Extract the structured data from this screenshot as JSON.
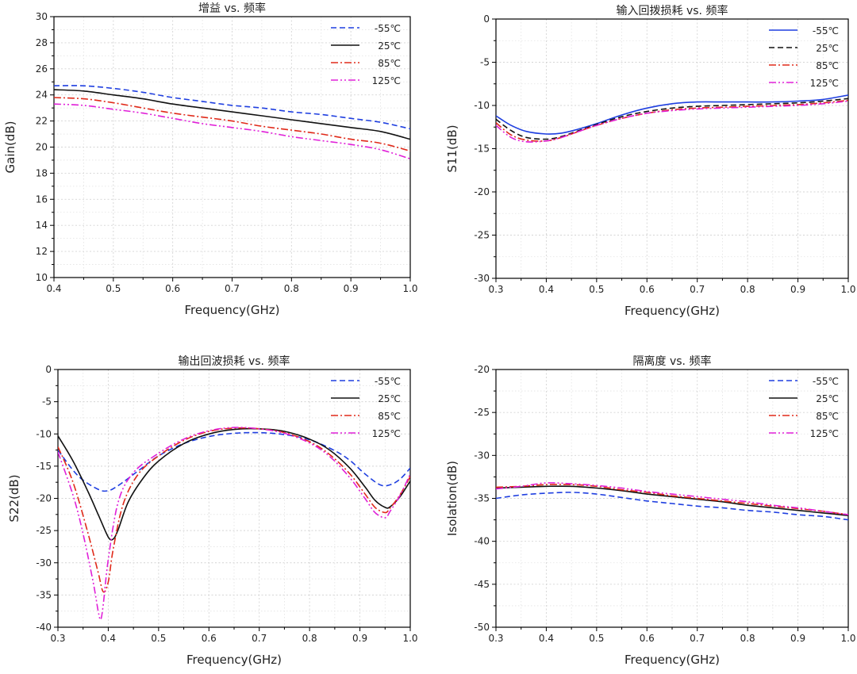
{
  "chart_data": [
    {
      "type": "line",
      "title": "增益 vs. 频率",
      "xlabel": "Frequency(GHz)",
      "ylabel": "Gain(dB)",
      "xlim": [
        0.4,
        1.0
      ],
      "ylim": [
        10,
        30
      ],
      "xticks": [
        0.4,
        0.5,
        0.6,
        0.7,
        0.8,
        0.9,
        1.0
      ],
      "xtick_labels": [
        "0.4",
        "0.5",
        "0.6",
        "0.7",
        "0.8",
        "0.9",
        "1.0"
      ],
      "yticks": [
        10,
        12,
        14,
        16,
        18,
        20,
        22,
        24,
        26,
        28,
        30
      ],
      "ytick_labels": [
        "10",
        "12",
        "14",
        "16",
        "18",
        "20",
        "22",
        "24",
        "26",
        "28",
        "30"
      ],
      "grid": true,
      "legend_position": "top-right",
      "series": [
        {
          "name": "-55℃",
          "color": "#1f3fe0",
          "dash": "dash",
          "x": [
            0.4,
            0.45,
            0.5,
            0.55,
            0.6,
            0.65,
            0.7,
            0.75,
            0.8,
            0.85,
            0.9,
            0.95,
            1.0
          ],
          "y": [
            24.7,
            24.7,
            24.5,
            24.2,
            23.8,
            23.5,
            23.2,
            23.0,
            22.7,
            22.5,
            22.2,
            21.9,
            21.4
          ]
        },
        {
          "name": "25℃",
          "color": "#111111",
          "dash": "solid",
          "x": [
            0.4,
            0.45,
            0.5,
            0.55,
            0.6,
            0.65,
            0.7,
            0.75,
            0.8,
            0.85,
            0.9,
            0.95,
            1.0
          ],
          "y": [
            24.4,
            24.3,
            24.0,
            23.7,
            23.3,
            23.0,
            22.7,
            22.4,
            22.1,
            21.8,
            21.5,
            21.2,
            20.6
          ]
        },
        {
          "name": "85℃",
          "color": "#e02a1a",
          "dash": "dashdot",
          "x": [
            0.4,
            0.45,
            0.5,
            0.55,
            0.6,
            0.65,
            0.7,
            0.75,
            0.8,
            0.85,
            0.9,
            0.95,
            1.0
          ],
          "y": [
            23.8,
            23.7,
            23.4,
            23.0,
            22.6,
            22.3,
            22.0,
            21.6,
            21.3,
            21.0,
            20.6,
            20.3,
            19.7
          ]
        },
        {
          "name": "125℃",
          "color": "#e020d8",
          "dash": "dashdotdot",
          "x": [
            0.4,
            0.45,
            0.5,
            0.55,
            0.6,
            0.65,
            0.7,
            0.75,
            0.8,
            0.85,
            0.9,
            0.95,
            1.0
          ],
          "y": [
            23.3,
            23.2,
            22.9,
            22.6,
            22.2,
            21.8,
            21.5,
            21.2,
            20.8,
            20.5,
            20.2,
            19.8,
            19.1
          ]
        }
      ]
    },
    {
      "type": "line",
      "title": "输入回拨损耗 vs. 频率",
      "xlabel": "Frequency(GHz)",
      "ylabel": "S11(dB)",
      "xlim": [
        0.3,
        1.0
      ],
      "ylim": [
        -30,
        0
      ],
      "xticks": [
        0.3,
        0.4,
        0.5,
        0.6,
        0.7,
        0.8,
        0.9,
        1.0
      ],
      "xtick_labels": [
        "0.3",
        "0.4",
        "0.5",
        "0.6",
        "0.7",
        "0.8",
        "0.9",
        "1.0"
      ],
      "yticks": [
        -30,
        -25,
        -20,
        -15,
        -10,
        -5,
        0
      ],
      "ytick_labels": [
        "-30",
        "-25",
        "-20",
        "-15",
        "-10",
        "-5",
        "0"
      ],
      "grid": true,
      "legend_position": "top-right",
      "series": [
        {
          "name": "-55℃",
          "color": "#1f3fe0",
          "dash": "solid",
          "x": [
            0.3,
            0.33,
            0.36,
            0.4,
            0.43,
            0.46,
            0.5,
            0.55,
            0.6,
            0.65,
            0.7,
            0.75,
            0.8,
            0.85,
            0.9,
            0.95,
            1.0
          ],
          "y": [
            -11.2,
            -12.3,
            -13.0,
            -13.3,
            -13.2,
            -12.8,
            -12.1,
            -11.1,
            -10.3,
            -9.8,
            -9.6,
            -9.6,
            -9.6,
            -9.6,
            -9.5,
            -9.3,
            -8.8
          ]
        },
        {
          "name": "25℃",
          "color": "#111111",
          "dash": "dash",
          "x": [
            0.3,
            0.33,
            0.36,
            0.4,
            0.43,
            0.46,
            0.5,
            0.55,
            0.6,
            0.65,
            0.7,
            0.75,
            0.8,
            0.85,
            0.9,
            0.95,
            1.0
          ],
          "y": [
            -11.6,
            -12.9,
            -13.7,
            -13.9,
            -13.6,
            -13.0,
            -12.2,
            -11.3,
            -10.7,
            -10.3,
            -10.1,
            -10.0,
            -9.9,
            -9.8,
            -9.7,
            -9.5,
            -9.2
          ]
        },
        {
          "name": "85℃",
          "color": "#e02a1a",
          "dash": "dashdot",
          "x": [
            0.3,
            0.33,
            0.36,
            0.4,
            0.43,
            0.46,
            0.5,
            0.55,
            0.6,
            0.65,
            0.7,
            0.75,
            0.8,
            0.85,
            0.9,
            0.95,
            1.0
          ],
          "y": [
            -12.0,
            -13.4,
            -14.0,
            -14.1,
            -13.7,
            -13.1,
            -12.3,
            -11.5,
            -10.9,
            -10.5,
            -10.3,
            -10.2,
            -10.1,
            -10.0,
            -9.9,
            -9.7,
            -9.4
          ]
        },
        {
          "name": "125℃",
          "color": "#e020d8",
          "dash": "dashdotdot",
          "x": [
            0.3,
            0.33,
            0.36,
            0.4,
            0.43,
            0.46,
            0.5,
            0.55,
            0.6,
            0.65,
            0.7,
            0.75,
            0.8,
            0.85,
            0.9,
            0.95,
            1.0
          ],
          "y": [
            -12.3,
            -13.7,
            -14.2,
            -14.1,
            -13.7,
            -13.1,
            -12.3,
            -11.5,
            -10.9,
            -10.6,
            -10.4,
            -10.3,
            -10.2,
            -10.1,
            -10.0,
            -9.8,
            -9.5
          ]
        }
      ]
    },
    {
      "type": "line",
      "title": "输出回波损耗 vs. 频率",
      "xlabel": "Frequency(GHz)",
      "ylabel": "S22(dB)",
      "xlim": [
        0.3,
        1.0
      ],
      "ylim": [
        -40,
        0
      ],
      "xticks": [
        0.3,
        0.4,
        0.5,
        0.6,
        0.7,
        0.8,
        0.9,
        1.0
      ],
      "xtick_labels": [
        "0.3",
        "0.4",
        "0.5",
        "0.6",
        "0.7",
        "0.8",
        "0.9",
        "1.0"
      ],
      "yticks": [
        -40,
        -35,
        -30,
        -25,
        -20,
        -15,
        -10,
        -5,
        0
      ],
      "ytick_labels": [
        "-40",
        "-35",
        "-30",
        "-25",
        "-20",
        "-15",
        "-10",
        "-5",
        "0"
      ],
      "grid": true,
      "legend_position": "top-right",
      "series": [
        {
          "name": "-55℃",
          "color": "#1f3fe0",
          "dash": "dash",
          "x": [
            0.3,
            0.34,
            0.38,
            0.4,
            0.42,
            0.46,
            0.5,
            0.55,
            0.6,
            0.65,
            0.7,
            0.75,
            0.8,
            0.85,
            0.88,
            0.91,
            0.94,
            0.96,
            0.98,
            1.0
          ],
          "y": [
            -12.5,
            -16.5,
            -18.6,
            -18.8,
            -18.0,
            -15.7,
            -13.4,
            -11.5,
            -10.4,
            -9.9,
            -9.8,
            -10.1,
            -10.9,
            -12.6,
            -14.1,
            -16.2,
            -17.9,
            -17.9,
            -17.0,
            -15.3
          ]
        },
        {
          "name": "25℃",
          "color": "#111111",
          "dash": "solid",
          "x": [
            0.3,
            0.33,
            0.36,
            0.38,
            0.4,
            0.41,
            0.42,
            0.44,
            0.47,
            0.5,
            0.55,
            0.6,
            0.65,
            0.7,
            0.75,
            0.8,
            0.84,
            0.88,
            0.91,
            0.93,
            0.95,
            0.96,
            0.98,
            1.0
          ],
          "y": [
            -10.3,
            -14.2,
            -19.0,
            -22.5,
            -26.0,
            -26.3,
            -24.8,
            -20.5,
            -16.8,
            -14.2,
            -11.5,
            -10.0,
            -9.3,
            -9.2,
            -9.6,
            -10.8,
            -12.5,
            -15.3,
            -18.2,
            -20.3,
            -21.4,
            -21.3,
            -19.7,
            -17.3
          ]
        },
        {
          "name": "85℃",
          "color": "#e02a1a",
          "dash": "dashdot",
          "x": [
            0.3,
            0.33,
            0.36,
            0.38,
            0.39,
            0.4,
            0.41,
            0.43,
            0.46,
            0.5,
            0.55,
            0.6,
            0.65,
            0.7,
            0.75,
            0.8,
            0.84,
            0.88,
            0.91,
            0.93,
            0.95,
            0.96,
            0.98,
            1.0
          ],
          "y": [
            -12.0,
            -17.5,
            -25.5,
            -31.5,
            -34.5,
            -33.0,
            -27.8,
            -20.8,
            -16.2,
            -13.4,
            -11.0,
            -9.6,
            -9.1,
            -9.2,
            -9.8,
            -11.2,
            -13.2,
            -16.2,
            -19.3,
            -21.4,
            -22.2,
            -21.5,
            -19.4,
            -16.6
          ]
        },
        {
          "name": "125℃",
          "color": "#e020d8",
          "dash": "dashdotdot",
          "x": [
            0.3,
            0.33,
            0.35,
            0.37,
            0.38,
            0.385,
            0.39,
            0.4,
            0.42,
            0.45,
            0.5,
            0.55,
            0.6,
            0.65,
            0.7,
            0.75,
            0.8,
            0.84,
            0.88,
            0.91,
            0.93,
            0.95,
            0.96,
            0.98,
            1.0
          ],
          "y": [
            -12.8,
            -19.5,
            -25.5,
            -33.0,
            -37.5,
            -38.8,
            -36.5,
            -29.5,
            -20.5,
            -16.0,
            -13.0,
            -10.8,
            -9.5,
            -9.0,
            -9.2,
            -9.9,
            -11.4,
            -13.5,
            -16.8,
            -20.0,
            -22.2,
            -23.0,
            -22.0,
            -19.5,
            -16.2
          ]
        }
      ]
    },
    {
      "type": "line",
      "title": "隔离度 vs. 频率",
      "xlabel": "Frequency(GHz)",
      "ylabel": "Isolation(dB)",
      "xlim": [
        0.3,
        1.0
      ],
      "ylim": [
        -50,
        -20
      ],
      "xticks": [
        0.3,
        0.4,
        0.5,
        0.6,
        0.7,
        0.8,
        0.9,
        1.0
      ],
      "xtick_labels": [
        "0.3",
        "0.4",
        "0.5",
        "0.6",
        "0.7",
        "0.8",
        "0.9",
        "1.0"
      ],
      "yticks": [
        -50,
        -45,
        -40,
        -35,
        -30,
        -25,
        -20
      ],
      "ytick_labels": [
        "-50",
        "-45",
        "-40",
        "-35",
        "-30",
        "-25",
        "-20"
      ],
      "grid": true,
      "legend_position": "top-right",
      "series": [
        {
          "name": "-55℃",
          "color": "#1f3fe0",
          "dash": "dash",
          "x": [
            0.3,
            0.35,
            0.4,
            0.45,
            0.5,
            0.55,
            0.6,
            0.65,
            0.7,
            0.75,
            0.8,
            0.85,
            0.9,
            0.95,
            1.0
          ],
          "y": [
            -35.0,
            -34.6,
            -34.4,
            -34.3,
            -34.5,
            -34.9,
            -35.3,
            -35.6,
            -35.9,
            -36.1,
            -36.4,
            -36.6,
            -36.9,
            -37.1,
            -37.5
          ]
        },
        {
          "name": "25℃",
          "color": "#111111",
          "dash": "solid",
          "x": [
            0.3,
            0.35,
            0.4,
            0.45,
            0.5,
            0.55,
            0.6,
            0.65,
            0.7,
            0.75,
            0.8,
            0.85,
            0.9,
            0.95,
            1.0
          ],
          "y": [
            -33.8,
            -33.7,
            -33.6,
            -33.6,
            -33.8,
            -34.1,
            -34.5,
            -34.8,
            -35.1,
            -35.4,
            -35.8,
            -36.1,
            -36.4,
            -36.7,
            -37.0
          ]
        },
        {
          "name": "85℃",
          "color": "#e02a1a",
          "dash": "dashdot",
          "x": [
            0.3,
            0.35,
            0.4,
            0.45,
            0.5,
            0.55,
            0.6,
            0.65,
            0.7,
            0.75,
            0.8,
            0.85,
            0.9,
            0.95,
            1.0
          ],
          "y": [
            -33.7,
            -33.6,
            -33.4,
            -33.4,
            -33.6,
            -34.0,
            -34.3,
            -34.7,
            -35.0,
            -35.3,
            -35.6,
            -35.9,
            -36.2,
            -36.5,
            -36.9
          ]
        },
        {
          "name": "125℃",
          "color": "#e020d8",
          "dash": "dashdotdot",
          "x": [
            0.3,
            0.35,
            0.4,
            0.45,
            0.5,
            0.55,
            0.6,
            0.65,
            0.7,
            0.75,
            0.8,
            0.85,
            0.9,
            0.95,
            1.0
          ],
          "y": [
            -33.9,
            -33.6,
            -33.2,
            -33.3,
            -33.5,
            -33.8,
            -34.2,
            -34.5,
            -34.8,
            -35.1,
            -35.4,
            -35.8,
            -36.1,
            -36.5,
            -36.9
          ]
        }
      ]
    }
  ]
}
